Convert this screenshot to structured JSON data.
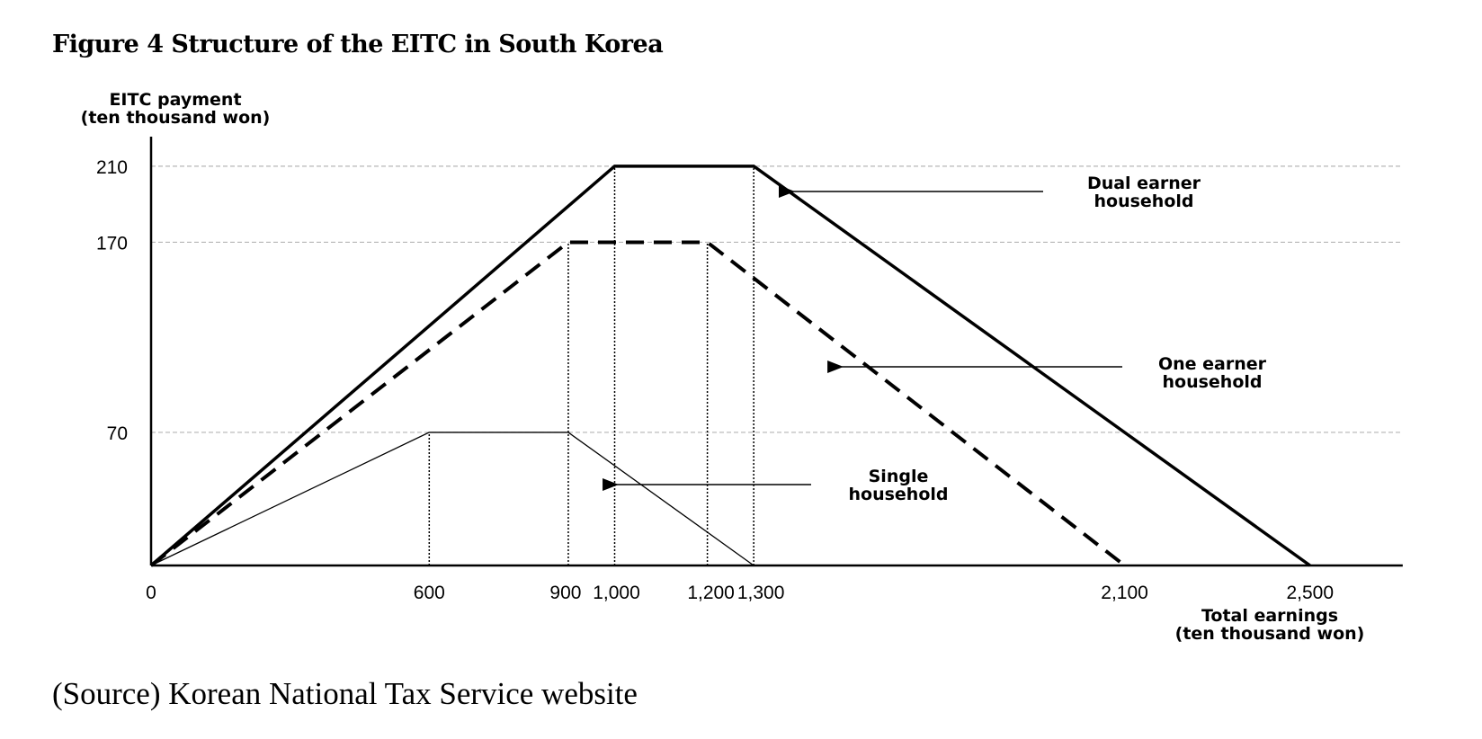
{
  "title": "Figure 4 Structure of the EITC in South Korea",
  "source": "(Source) Korean National Tax Service website",
  "chart_data": {
    "type": "line",
    "title": "Figure 4 Structure of the EITC in South Korea",
    "ylabel_line1": "EITC payment",
    "ylabel_line2": "(ten thousand won)",
    "xlabel_line1": "Total earnings",
    "xlabel_line2": "(ten thousand won)",
    "xlim": [
      0,
      2700
    ],
    "ylim": [
      0,
      222
    ],
    "x_ticks": [
      0,
      600,
      900,
      1000,
      1200,
      1300,
      2100,
      2500
    ],
    "x_tick_labels": [
      "0",
      "600",
      "900",
      "1,000",
      "1,200",
      "1,300",
      "2,100",
      "2,500"
    ],
    "y_ticks": [
      70,
      170,
      210
    ],
    "y_tick_labels": [
      "70",
      "170",
      "210"
    ],
    "grid": "horizontal dashed at 70, 170, 210",
    "series": [
      {
        "name": "Dual earner household",
        "label_line1": "Dual earner",
        "label_line2": "household",
        "style": "solid-thick",
        "color": "#000000",
        "x": [
          0,
          1000,
          1300,
          2500
        ],
        "y": [
          0,
          210,
          210,
          0
        ]
      },
      {
        "name": "One earner household",
        "label_line1": "One earner",
        "label_line2": "household",
        "style": "dashed-thick",
        "color": "#000000",
        "x": [
          0,
          900,
          1200,
          2100
        ],
        "y": [
          0,
          170,
          170,
          0
        ]
      },
      {
        "name": "Single household",
        "label_line1": "Single",
        "label_line2": "household",
        "style": "solid-thin",
        "color": "#000000",
        "x": [
          0,
          600,
          900,
          1300
        ],
        "y": [
          0,
          70,
          70,
          0
        ]
      }
    ],
    "reference_verticals": [
      {
        "x": 600,
        "y": 70
      },
      {
        "x": 900,
        "y": 170
      },
      {
        "x": 1000,
        "y": 210
      },
      {
        "x": 1200,
        "y": 170
      },
      {
        "x": 1300,
        "y": 210
      }
    ]
  }
}
